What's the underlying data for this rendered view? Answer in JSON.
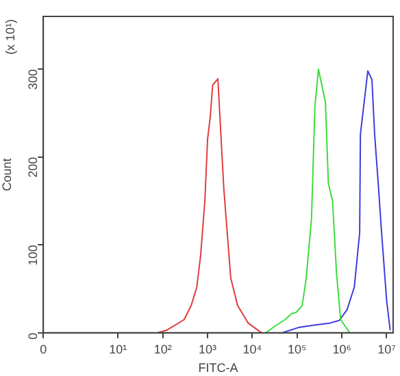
{
  "chart_data": {
    "type": "line",
    "xlabel": "FITC-A",
    "ylabel": "Count",
    "annotations": [
      "(x 10¹)"
    ],
    "log": "x",
    "grid": false,
    "legend": false,
    "marker": "none",
    "line_style": "solid",
    "xlim": [
      0,
      14000000
    ],
    "xticks": [
      0,
      {
        "value": 10,
        "label": "10¹"
      },
      {
        "value": 100,
        "label": "10²"
      },
      {
        "value": 1000,
        "label": "10³"
      },
      {
        "value": 10000,
        "label": "10⁴"
      },
      {
        "value": 100000,
        "label": "10⁵"
      },
      {
        "value": 1000000,
        "label": "10⁶"
      },
      {
        "value": 10000000,
        "label": "10⁷"
      }
    ],
    "ylim": [
      0,
      360
    ],
    "yticks": [
      0,
      100,
      200,
      300
    ],
    "series": [
      {
        "color": "#e03c3c",
        "x": [
          76,
          123,
          300,
          430,
          575,
          700,
          870,
          1000,
          1150,
          1300,
          1700,
          2300,
          3300,
          4700,
          8100,
          16000
        ],
        "values": [
          0,
          3,
          15,
          31,
          52,
          88,
          150,
          220,
          246,
          282,
          289,
          165,
          62,
          31,
          11,
          0
        ]
      },
      {
        "color": "#3cdc3c",
        "x": [
          20000,
          33000,
          54000,
          76000,
          94000,
          130000,
          160000,
          210000,
          250000,
          300000,
          430000,
          500000,
          620000,
          760000,
          940000,
          1500000
        ],
        "values": [
          0,
          8,
          15,
          22,
          23,
          31,
          62,
          130,
          257,
          300,
          262,
          170,
          150,
          68,
          15,
          0
        ]
      },
      {
        "color": "#3c3cdc",
        "x": [
          47000,
          107000,
          260000,
          540000,
          870000,
          1300000,
          1900000,
          2500000,
          2600000,
          3800000,
          4700000,
          5400000,
          6600000,
          7600000,
          10000000,
          12000000
        ],
        "values": [
          0,
          6,
          9,
          11,
          14,
          26,
          52,
          114,
          226,
          298,
          288,
          226,
          165,
          119,
          37,
          3
        ]
      }
    ]
  }
}
